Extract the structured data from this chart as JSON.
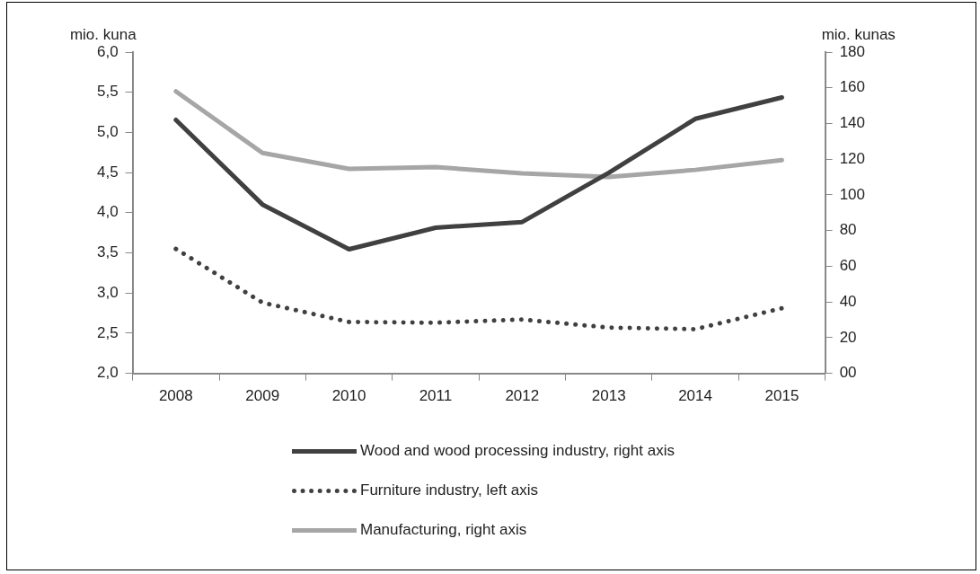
{
  "chart_data": {
    "type": "line",
    "ylabel": "mio. kuna",
    "y2label": "mio. kunas",
    "categories": [
      "2008",
      "2009",
      "2010",
      "2011",
      "2012",
      "2013",
      "2014",
      "2015"
    ],
    "series": [
      {
        "name": "Wood and wood processing industry, right axis",
        "color": "#404040",
        "axis": "y2",
        "line_style": "solid",
        "values": [
          142,
          94.6,
          69.5,
          81.6,
          84.8,
          112.4,
          142.6,
          154.6
        ]
      },
      {
        "name": "Furniture industry, left axis",
        "color": "#404040",
        "line_style": "dotted",
        "values": [
          3.55,
          2.88,
          2.64,
          2.63,
          2.67,
          2.57,
          2.55,
          2.81
        ]
      },
      {
        "name": "Manufacturing, right axis",
        "color": "#a6a6a6",
        "axis": "y2",
        "line_style": "solid",
        "values": [
          158,
          123.5,
          114.6,
          115.6,
          112,
          110,
          114,
          119.5
        ]
      }
    ],
    "ylim": [
      2,
      6
    ],
    "yticks": [
      {
        "value": 2,
        "label": "2,0"
      },
      {
        "value": 2.5,
        "label": "2,5"
      },
      {
        "value": 3,
        "label": "3,0"
      },
      {
        "value": 3.5,
        "label": "3,5"
      },
      {
        "value": 4,
        "label": "4,0"
      },
      {
        "value": 4.5,
        "label": "4,5"
      },
      {
        "value": 5,
        "label": "5,0"
      },
      {
        "value": 5.5,
        "label": "5,5"
      },
      {
        "value": 6,
        "label": "6,0"
      }
    ],
    "y2lim": [
      0,
      180
    ],
    "y2ticks": [
      {
        "value": 0,
        "label": "00"
      },
      20,
      40,
      60,
      80,
      100,
      120,
      140,
      160,
      180
    ],
    "grid": false,
    "legend": "bottom",
    "marker": "none"
  }
}
